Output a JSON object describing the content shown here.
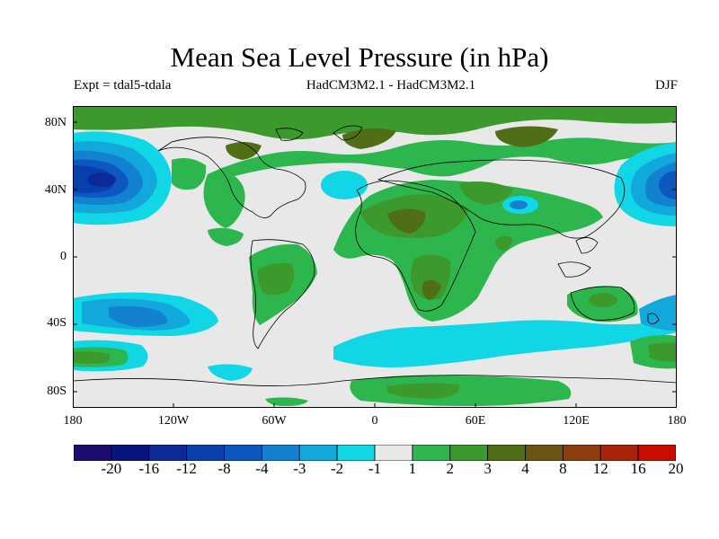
{
  "header": {
    "title": "Mean Sea Level Pressure (in hPa)",
    "expt": "Expt = tdal5-tdala",
    "models": "HadCM3M2.1 - HadCM3M2.1",
    "season": "DJF"
  },
  "axes": {
    "lat_labels": [
      "80N",
      "40N",
      "0",
      "40S",
      "80S"
    ],
    "lon_labels": [
      "180",
      "120W",
      "60W",
      "0",
      "60E",
      "120E",
      "180"
    ]
  },
  "colorbar": {
    "labels": [
      "-20",
      "-16",
      "-12",
      "-8",
      "-4",
      "-3",
      "-2",
      "-1",
      "1",
      "2",
      "3",
      "4",
      "8",
      "12",
      "16",
      "20"
    ],
    "colors": [
      "#1c0c6e",
      "#0a147f",
      "#0d2a98",
      "#0a3fae",
      "#0d58c0",
      "#1181d0",
      "#13a8dc",
      "#10d6e6",
      "#e8e8e8",
      "#2db64e",
      "#3c9a2d",
      "#4f6e16",
      "#6b5512",
      "#8e3d0e",
      "#ac2208",
      "#c90d00"
    ]
  },
  "palette": {
    "neutral": "#e8e8e8",
    "coast": "#000000"
  }
}
